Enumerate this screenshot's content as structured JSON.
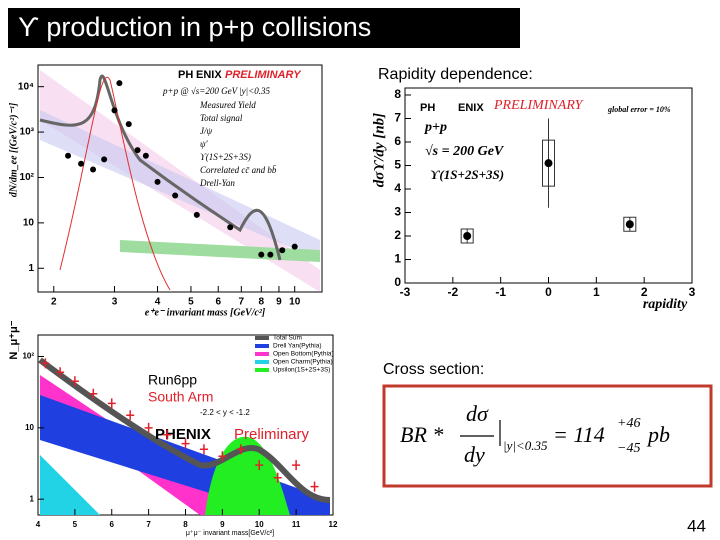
{
  "title": "ϒ production in p+p collisions",
  "page_number": "44",
  "upper_plot": {
    "type": "scatter",
    "y_label": "dN/dm_ee [(GeV/c²)⁻¹]",
    "x_label": "e⁺e⁻ invariant mass [GeV/c²]",
    "logo_left": "PH",
    "logo_right": "ENIX",
    "preliminary": "PRELIMINARY",
    "condition": "p+p @ √s=200 GeV |y|<0.35",
    "legend": [
      "Measured Yield",
      "Total signal",
      "J/ψ",
      "ψ'",
      "ϒ(1S+2S+3S)",
      "Correlated cc̄ and bb̄",
      "Drell-Yan"
    ],
    "x": [
      2.2,
      2.4,
      2.6,
      2.8,
      3.0,
      3.1,
      3.3,
      3.5,
      3.7,
      4.0,
      4.5,
      5.2,
      6.5,
      8.0,
      8.5,
      9.2,
      10.0
    ],
    "values": [
      300,
      200,
      150,
      250,
      3000,
      12000,
      1500,
      400,
      300,
      80,
      40,
      15,
      8,
      2,
      2,
      2.5,
      3
    ],
    "xlim": [
      1.8,
      12
    ],
    "ylim": [
      0.3,
      30000
    ],
    "log_x": true,
    "log_y": true,
    "xticks": [
      2,
      3,
      4,
      5,
      6,
      7,
      8,
      9,
      10
    ],
    "yticks": [
      1,
      10,
      {
        "value": 100,
        "label": "10²"
      },
      {
        "value": 1000,
        "label": "10³"
      },
      {
        "value": 10000,
        "label": "10⁴"
      }
    ]
  },
  "lower_plot": {
    "type": "scatter",
    "y_label": "N_μ⁺μ⁻",
    "x_label": "μ⁺μ⁻ invariant mass[GeV/c²]",
    "legend": [
      "Total Sum",
      "Drell Yan(Pythia)",
      "Open Bottom(Pythia)",
      "Open Charm(Pythia)",
      "Upsilon(1S+2S+3S)"
    ],
    "legend_colors": [
      "#555555",
      "#1f3fe0",
      "#ff33cc",
      "#22d3e6",
      "#22ee22"
    ],
    "run": "Run6pp",
    "arm": "South Arm",
    "rapidity_range": "-2.2 < y < -1.2",
    "logo": "PHENIX",
    "preliminary": "Preliminary",
    "x": [
      4.2,
      4.6,
      5.0,
      5.5,
      6.0,
      6.5,
      7.0,
      7.5,
      8.0,
      8.5,
      9.0,
      9.5,
      10.0,
      10.5,
      11.0,
      11.5
    ],
    "values": [
      80,
      60,
      45,
      30,
      22,
      15,
      10,
      8,
      6,
      5,
      4,
      5,
      3,
      2,
      3,
      1.5
    ],
    "xlim": [
      4,
      12
    ],
    "ylim": [
      0.6,
      200
    ],
    "log_y": true,
    "xticks": [
      4,
      5,
      6,
      7,
      8,
      9,
      10,
      11,
      12
    ],
    "yticks": [
      1,
      10,
      {
        "value": 100,
        "label": "10²"
      }
    ]
  },
  "rapidity": {
    "heading": "Rapidity dependence:",
    "chart": {
      "type": "scatter",
      "y_label": "dσϒ/dy [nb]",
      "x_label": "rapidity",
      "logo_left": "PH",
      "logo_right": "ENIX",
      "preliminary": "PRELIMINARY",
      "global_error": "global error = 10%",
      "system": "p+p",
      "energy": "√s = 200 GeV",
      "state": "ϒ(1S+2S+3S)",
      "x": [
        -1.7,
        0,
        1.7
      ],
      "values": [
        2.0,
        5.1,
        2.5
      ],
      "errors": [
        0.3,
        1.9,
        0.3
      ],
      "xlim": [
        -3,
        3
      ],
      "ylim": [
        0,
        8
      ],
      "xticks": [
        -3,
        -2,
        -1,
        0,
        1,
        2,
        3
      ],
      "yticks": [
        0,
        1,
        2,
        3,
        4,
        5,
        6,
        7,
        8
      ]
    }
  },
  "cross_section": {
    "heading": "Cross section:",
    "formula": {
      "prefix": "BR *",
      "numerator": "dσ",
      "denominator": "dy",
      "range": "|y|<0.35",
      "value": "= 114",
      "plus": "+46",
      "minus": "−45",
      "unit": "pb"
    }
  }
}
